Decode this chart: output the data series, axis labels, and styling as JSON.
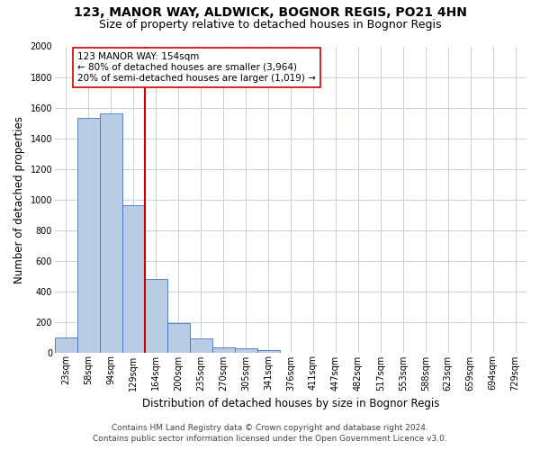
{
  "title_line1": "123, MANOR WAY, ALDWICK, BOGNOR REGIS, PO21 4HN",
  "title_line2": "Size of property relative to detached houses in Bognor Regis",
  "xlabel": "Distribution of detached houses by size in Bognor Regis",
  "ylabel": "Number of detached properties",
  "categories": [
    "23sqm",
    "58sqm",
    "94sqm",
    "129sqm",
    "164sqm",
    "200sqm",
    "235sqm",
    "270sqm",
    "305sqm",
    "341sqm",
    "376sqm",
    "411sqm",
    "447sqm",
    "482sqm",
    "517sqm",
    "553sqm",
    "588sqm",
    "623sqm",
    "659sqm",
    "694sqm",
    "729sqm"
  ],
  "values": [
    100,
    1530,
    1560,
    960,
    480,
    190,
    90,
    35,
    25,
    15,
    0,
    0,
    0,
    0,
    0,
    0,
    0,
    0,
    0,
    0,
    0
  ],
  "bar_color": "#b8cce4",
  "bar_edge_color": "#4472c4",
  "vline_x_index": 3.5,
  "vline_color": "#cc0000",
  "ylim": [
    0,
    2000
  ],
  "yticks": [
    0,
    200,
    400,
    600,
    800,
    1000,
    1200,
    1400,
    1600,
    1800,
    2000
  ],
  "annotation_text": "123 MANOR WAY: 154sqm\n← 80% of detached houses are smaller (3,964)\n20% of semi-detached houses are larger (1,019) →",
  "annotation_box_color": "#ffffff",
  "annotation_box_edge": "#cc0000",
  "footer_line1": "Contains HM Land Registry data © Crown copyright and database right 2024.",
  "footer_line2": "Contains public sector information licensed under the Open Government Licence v3.0.",
  "bg_color": "#ffffff",
  "grid_color": "#c8d0dc",
  "title_fontsize": 10,
  "subtitle_fontsize": 9,
  "axis_label_fontsize": 8.5,
  "tick_fontsize": 7,
  "annotation_fontsize": 7.5,
  "footer_fontsize": 6.5
}
